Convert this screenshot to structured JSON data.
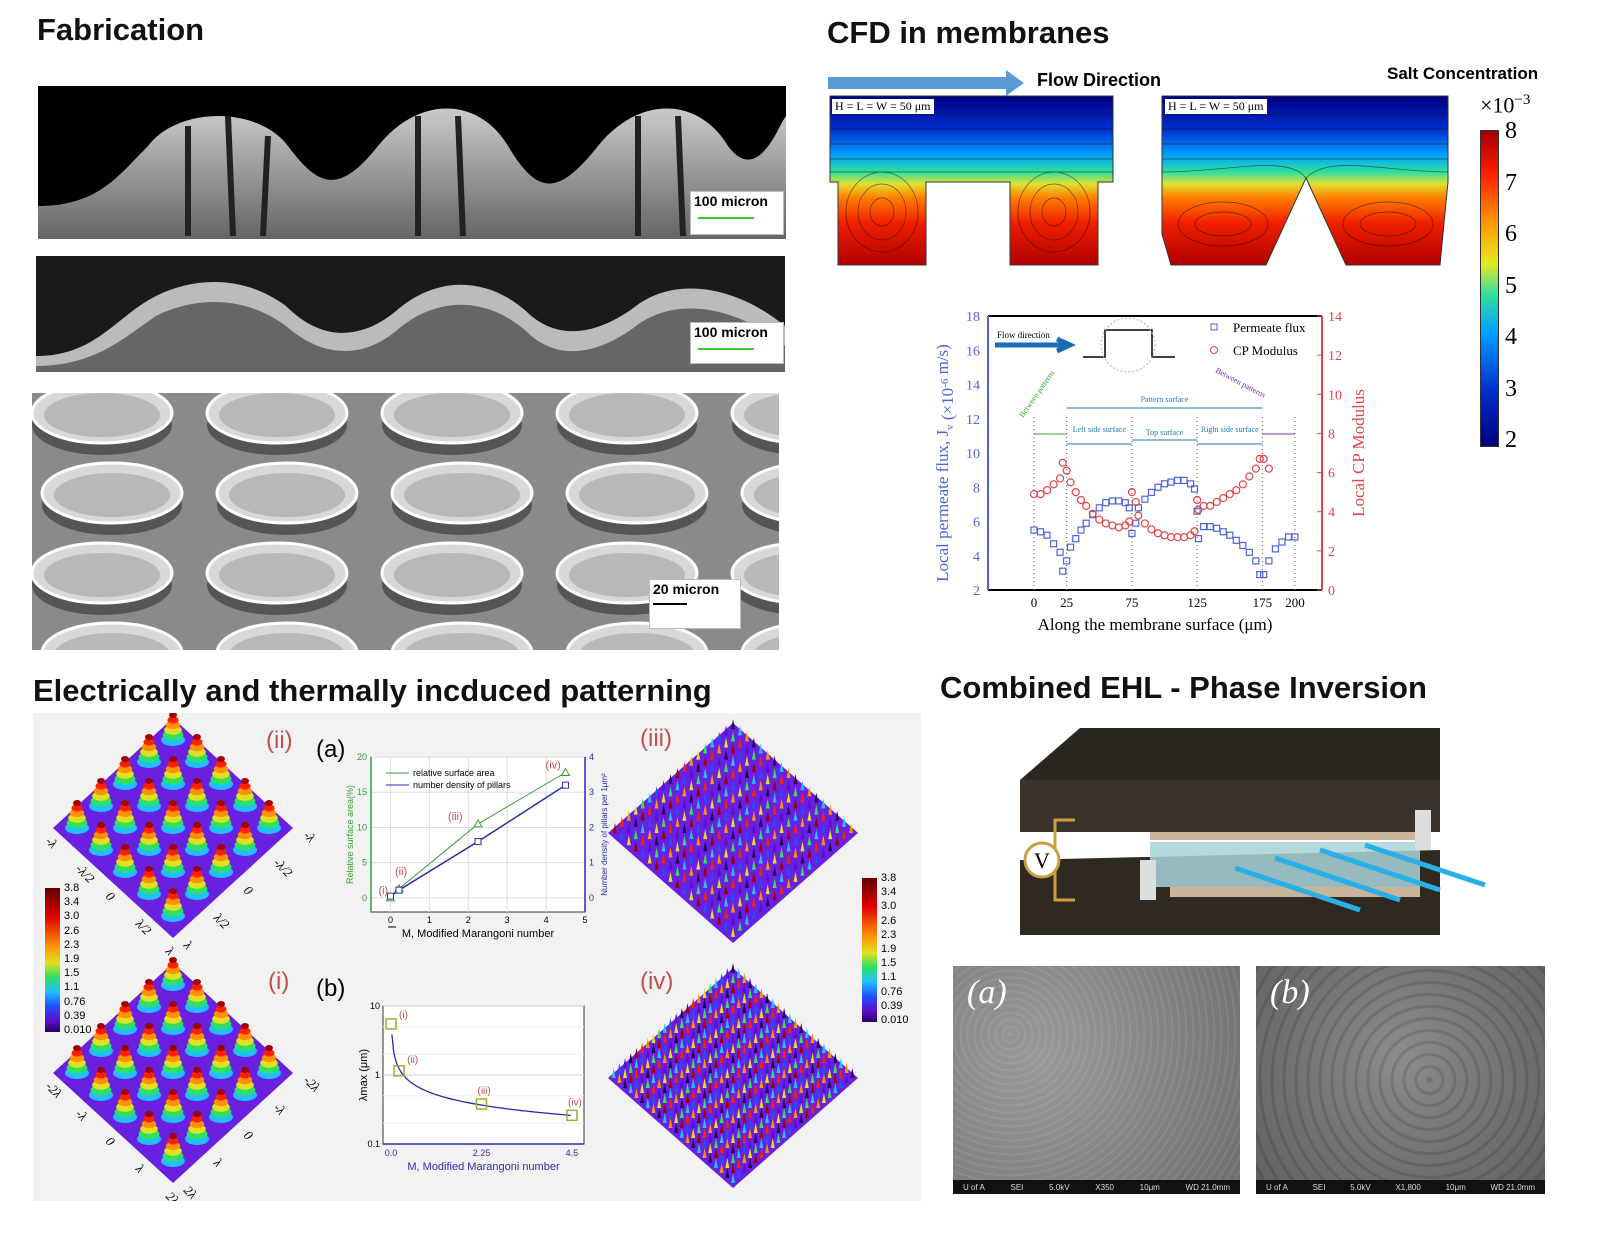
{
  "sections": {
    "fabrication": {
      "title": "Fabrication",
      "images": [
        {
          "scale_label": "100 micron"
        },
        {
          "scale_label": "100 micron"
        },
        {
          "scale_label": "20 micron"
        }
      ]
    },
    "cfd": {
      "title": "CFD in membranes",
      "flow_label": "Flow Direction",
      "panel_labels": [
        "H = L = W = 50 μm",
        "H = L = W = 50 μm"
      ],
      "colorbar": {
        "title": "Salt Concentration",
        "multiplier": "×10",
        "exponent": "−3",
        "ticks": [
          "8",
          "7",
          "6",
          "5",
          "4",
          "3",
          "2"
        ]
      }
    },
    "electrical": {
      "title": "Electrically and thermally incduced patterning",
      "panel_tags": [
        "(ii)",
        "(i)",
        "(iii)",
        "(iv)",
        "(a)",
        "(b)"
      ],
      "colorbar_ticks": [
        "3.8",
        "3.4",
        "3.0",
        "2.6",
        "2.3",
        "1.9",
        "1.5",
        "1.1",
        "0.76",
        "0.39",
        "0.010"
      ],
      "surface_axis_labels_ii": [
        "-λ",
        "-λ/2",
        "0",
        "λ/2",
        "λ",
        "λ",
        "λ/2",
        "0",
        "-λ/2",
        "-λ"
      ],
      "surface_axis_labels_i": [
        "-2λ",
        "-λ",
        "0",
        "λ",
        "2λ",
        "2λ",
        "λ",
        "0",
        "-λ",
        "-2λ"
      ]
    },
    "ehl": {
      "title": "Combined EHL - Phase Inversion",
      "voltage_label": "V",
      "sem_images": [
        {
          "label": "(a)",
          "footer": [
            "U of A",
            "SEI",
            "5.0kV",
            "X350",
            "10μm",
            "WD 21.0mm"
          ]
        },
        {
          "label": "(b)",
          "footer": [
            "U of A",
            "SEI",
            "5.0kV",
            "X1,800",
            "10μm",
            "WD 21.0mm"
          ]
        }
      ]
    }
  },
  "colors": {
    "flux_blue": "#4f63d8",
    "cp_red": "#e0454a",
    "green_series": "#3a9a3a",
    "navy_series": "#2b2bb0",
    "annot_red": "#c0504d"
  },
  "chart_data": [
    {
      "type": "scatter",
      "xlabel": "Along the membrane surface (μm)",
      "ylabel": "Local permeate flux, J",
      "ylabel_sub": "v",
      "ylabel_unit": " (×10",
      "ylabel_exp": "-6",
      "ylabel_tail": " m/s)",
      "y2label": "Local CP Modulus",
      "xticks": [
        0,
        25,
        75,
        125,
        175,
        200
      ],
      "yticks": [
        2,
        4,
        6,
        8,
        10,
        12,
        14,
        16,
        18
      ],
      "y2ticks": [
        0,
        2,
        4,
        6,
        8,
        10,
        12,
        14
      ],
      "xlim": [
        -60,
        225
      ],
      "ylim": [
        2,
        18
      ],
      "y2lim": [
        0,
        14
      ],
      "legend_placement": "top-right",
      "annotations": [
        "Flow direction",
        "Between patterns",
        "Pattern surface",
        "Left side surface",
        "Top surface",
        "Right side surface",
        "Between patterns"
      ],
      "series": [
        {
          "name": "Permeate flux",
          "axis": "left",
          "marker": "square",
          "x": [
            0,
            5,
            10,
            15,
            20,
            22,
            25,
            28,
            32,
            36,
            40,
            45,
            50,
            55,
            60,
            65,
            70,
            73,
            75,
            78,
            80,
            85,
            90,
            95,
            100,
            105,
            110,
            115,
            120,
            123,
            125,
            126,
            130,
            135,
            140,
            145,
            150,
            155,
            160,
            165,
            170,
            173,
            176,
            180,
            185,
            190,
            195,
            200
          ],
          "y": [
            5.5,
            5.4,
            5.2,
            4.7,
            4.2,
            3.1,
            3.7,
            4.5,
            5.0,
            5.5,
            5.9,
            6.4,
            6.8,
            7.1,
            7.2,
            7.2,
            7.1,
            6.8,
            5.3,
            5.9,
            6.8,
            7.3,
            7.7,
            8.0,
            8.2,
            8.3,
            8.4,
            8.4,
            8.2,
            7.9,
            6.6,
            5.0,
            5.7,
            5.7,
            5.6,
            5.4,
            5.2,
            4.9,
            4.6,
            4.2,
            3.7,
            2.9,
            2.9,
            3.7,
            4.4,
            4.8,
            5.1,
            5.1
          ]
        },
        {
          "name": "CP Modulus",
          "axis": "right",
          "marker": "circle",
          "x": [
            0,
            5,
            10,
            15,
            20,
            22,
            25,
            28,
            32,
            36,
            40,
            45,
            50,
            55,
            60,
            65,
            70,
            73,
            75,
            78,
            80,
            85,
            90,
            95,
            100,
            105,
            110,
            115,
            120,
            123,
            125,
            126,
            130,
            135,
            140,
            145,
            150,
            155,
            160,
            165,
            170,
            173,
            176,
            180
          ],
          "y": [
            4.9,
            4.9,
            5.1,
            5.4,
            5.7,
            6.5,
            6.1,
            5.5,
            5.0,
            4.6,
            4.3,
            3.9,
            3.6,
            3.4,
            3.3,
            3.2,
            3.3,
            3.5,
            5.0,
            4.5,
            3.8,
            3.4,
            3.1,
            2.9,
            2.8,
            2.7,
            2.7,
            2.7,
            2.8,
            3.0,
            4.6,
            4.1,
            4.3,
            4.3,
            4.5,
            4.7,
            4.9,
            5.1,
            5.4,
            5.8,
            6.2,
            6.7,
            6.7,
            6.2
          ]
        }
      ]
    },
    {
      "type": "line",
      "tag": "(a)",
      "xlabel": "M, Modified Marangoni number",
      "ylabel": "Relative surface area(%)",
      "y2label": "Number density of pillars per 1μm²",
      "xlim": [
        -0.5,
        5
      ],
      "ylim": [
        -2,
        20
      ],
      "y2lim": [
        -0.4,
        4
      ],
      "xticks": [
        0,
        1,
        2,
        3,
        4,
        5
      ],
      "yticks": [
        0,
        5,
        10,
        15,
        20
      ],
      "y2ticks": [
        0,
        1,
        2,
        3,
        4
      ],
      "grid": true,
      "legend_placement": "top-left",
      "point_labels": [
        "(i)",
        "(ii)",
        "(iii)",
        "(iv)"
      ],
      "series": [
        {
          "name": "relative surface area",
          "axis": "left",
          "marker": "triangle",
          "x": [
            0,
            0.22,
            2.25,
            4.5
          ],
          "y": [
            0,
            1.3,
            10.5,
            17.8
          ]
        },
        {
          "name": "number density of pillars",
          "axis": "right",
          "marker": "square",
          "x": [
            0,
            0.22,
            2.25,
            4.5
          ],
          "y": [
            0.05,
            0.22,
            1.6,
            3.2
          ]
        }
      ]
    },
    {
      "type": "line",
      "tag": "(b)",
      "xlabel": "M, Modified Marangoni number",
      "ylabel": "λmax (μm)",
      "xlim": [
        -0.2,
        4.8
      ],
      "ylim": [
        0.1,
        10
      ],
      "yscale": "log",
      "xticks": [
        "0.0",
        "2.25",
        "4.5"
      ],
      "yticks": [
        "0.1",
        "1",
        "10"
      ],
      "grid": true,
      "point_labels": [
        "(i)",
        "(ii)",
        "(iii)",
        "(iv)"
      ],
      "series": [
        {
          "x": [
            0,
            0.2,
            2.25,
            4.5
          ],
          "y": [
            5.5,
            1.15,
            0.38,
            0.26
          ]
        }
      ]
    }
  ]
}
